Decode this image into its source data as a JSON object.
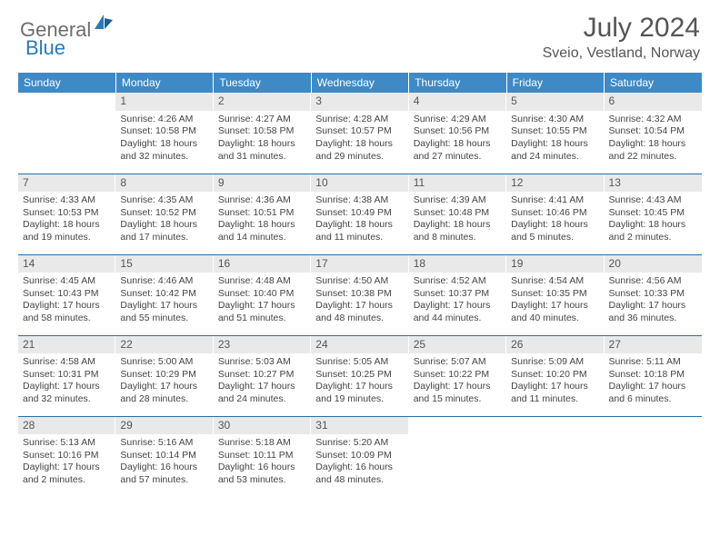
{
  "brand": {
    "general": "General",
    "blue": "Blue"
  },
  "title": "July 2024",
  "location": "Sveio, Vestland, Norway",
  "colors": {
    "header_bg": "#3d8ac7",
    "header_text": "#ffffff",
    "daynum_bg": "#e9e9e9",
    "row_border": "#2a6ca3",
    "brand_gray": "#6d6d6d",
    "brand_blue": "#2a7ab9",
    "text": "#444444"
  },
  "weekdays": [
    "Sunday",
    "Monday",
    "Tuesday",
    "Wednesday",
    "Thursday",
    "Friday",
    "Saturday"
  ],
  "weeks": [
    [
      {
        "n": "",
        "rise": "",
        "set": "",
        "day": ""
      },
      {
        "n": "1",
        "rise": "Sunrise: 4:26 AM",
        "set": "Sunset: 10:58 PM",
        "day": "Daylight: 18 hours and 32 minutes."
      },
      {
        "n": "2",
        "rise": "Sunrise: 4:27 AM",
        "set": "Sunset: 10:58 PM",
        "day": "Daylight: 18 hours and 31 minutes."
      },
      {
        "n": "3",
        "rise": "Sunrise: 4:28 AM",
        "set": "Sunset: 10:57 PM",
        "day": "Daylight: 18 hours and 29 minutes."
      },
      {
        "n": "4",
        "rise": "Sunrise: 4:29 AM",
        "set": "Sunset: 10:56 PM",
        "day": "Daylight: 18 hours and 27 minutes."
      },
      {
        "n": "5",
        "rise": "Sunrise: 4:30 AM",
        "set": "Sunset: 10:55 PM",
        "day": "Daylight: 18 hours and 24 minutes."
      },
      {
        "n": "6",
        "rise": "Sunrise: 4:32 AM",
        "set": "Sunset: 10:54 PM",
        "day": "Daylight: 18 hours and 22 minutes."
      }
    ],
    [
      {
        "n": "7",
        "rise": "Sunrise: 4:33 AM",
        "set": "Sunset: 10:53 PM",
        "day": "Daylight: 18 hours and 19 minutes."
      },
      {
        "n": "8",
        "rise": "Sunrise: 4:35 AM",
        "set": "Sunset: 10:52 PM",
        "day": "Daylight: 18 hours and 17 minutes."
      },
      {
        "n": "9",
        "rise": "Sunrise: 4:36 AM",
        "set": "Sunset: 10:51 PM",
        "day": "Daylight: 18 hours and 14 minutes."
      },
      {
        "n": "10",
        "rise": "Sunrise: 4:38 AM",
        "set": "Sunset: 10:49 PM",
        "day": "Daylight: 18 hours and 11 minutes."
      },
      {
        "n": "11",
        "rise": "Sunrise: 4:39 AM",
        "set": "Sunset: 10:48 PM",
        "day": "Daylight: 18 hours and 8 minutes."
      },
      {
        "n": "12",
        "rise": "Sunrise: 4:41 AM",
        "set": "Sunset: 10:46 PM",
        "day": "Daylight: 18 hours and 5 minutes."
      },
      {
        "n": "13",
        "rise": "Sunrise: 4:43 AM",
        "set": "Sunset: 10:45 PM",
        "day": "Daylight: 18 hours and 2 minutes."
      }
    ],
    [
      {
        "n": "14",
        "rise": "Sunrise: 4:45 AM",
        "set": "Sunset: 10:43 PM",
        "day": "Daylight: 17 hours and 58 minutes."
      },
      {
        "n": "15",
        "rise": "Sunrise: 4:46 AM",
        "set": "Sunset: 10:42 PM",
        "day": "Daylight: 17 hours and 55 minutes."
      },
      {
        "n": "16",
        "rise": "Sunrise: 4:48 AM",
        "set": "Sunset: 10:40 PM",
        "day": "Daylight: 17 hours and 51 minutes."
      },
      {
        "n": "17",
        "rise": "Sunrise: 4:50 AM",
        "set": "Sunset: 10:38 PM",
        "day": "Daylight: 17 hours and 48 minutes."
      },
      {
        "n": "18",
        "rise": "Sunrise: 4:52 AM",
        "set": "Sunset: 10:37 PM",
        "day": "Daylight: 17 hours and 44 minutes."
      },
      {
        "n": "19",
        "rise": "Sunrise: 4:54 AM",
        "set": "Sunset: 10:35 PM",
        "day": "Daylight: 17 hours and 40 minutes."
      },
      {
        "n": "20",
        "rise": "Sunrise: 4:56 AM",
        "set": "Sunset: 10:33 PM",
        "day": "Daylight: 17 hours and 36 minutes."
      }
    ],
    [
      {
        "n": "21",
        "rise": "Sunrise: 4:58 AM",
        "set": "Sunset: 10:31 PM",
        "day": "Daylight: 17 hours and 32 minutes."
      },
      {
        "n": "22",
        "rise": "Sunrise: 5:00 AM",
        "set": "Sunset: 10:29 PM",
        "day": "Daylight: 17 hours and 28 minutes."
      },
      {
        "n": "23",
        "rise": "Sunrise: 5:03 AM",
        "set": "Sunset: 10:27 PM",
        "day": "Daylight: 17 hours and 24 minutes."
      },
      {
        "n": "24",
        "rise": "Sunrise: 5:05 AM",
        "set": "Sunset: 10:25 PM",
        "day": "Daylight: 17 hours and 19 minutes."
      },
      {
        "n": "25",
        "rise": "Sunrise: 5:07 AM",
        "set": "Sunset: 10:22 PM",
        "day": "Daylight: 17 hours and 15 minutes."
      },
      {
        "n": "26",
        "rise": "Sunrise: 5:09 AM",
        "set": "Sunset: 10:20 PM",
        "day": "Daylight: 17 hours and 11 minutes."
      },
      {
        "n": "27",
        "rise": "Sunrise: 5:11 AM",
        "set": "Sunset: 10:18 PM",
        "day": "Daylight: 17 hours and 6 minutes."
      }
    ],
    [
      {
        "n": "28",
        "rise": "Sunrise: 5:13 AM",
        "set": "Sunset: 10:16 PM",
        "day": "Daylight: 17 hours and 2 minutes."
      },
      {
        "n": "29",
        "rise": "Sunrise: 5:16 AM",
        "set": "Sunset: 10:14 PM",
        "day": "Daylight: 16 hours and 57 minutes."
      },
      {
        "n": "30",
        "rise": "Sunrise: 5:18 AM",
        "set": "Sunset: 10:11 PM",
        "day": "Daylight: 16 hours and 53 minutes."
      },
      {
        "n": "31",
        "rise": "Sunrise: 5:20 AM",
        "set": "Sunset: 10:09 PM",
        "day": "Daylight: 16 hours and 48 minutes."
      },
      {
        "n": "",
        "rise": "",
        "set": "",
        "day": ""
      },
      {
        "n": "",
        "rise": "",
        "set": "",
        "day": ""
      },
      {
        "n": "",
        "rise": "",
        "set": "",
        "day": ""
      }
    ]
  ]
}
